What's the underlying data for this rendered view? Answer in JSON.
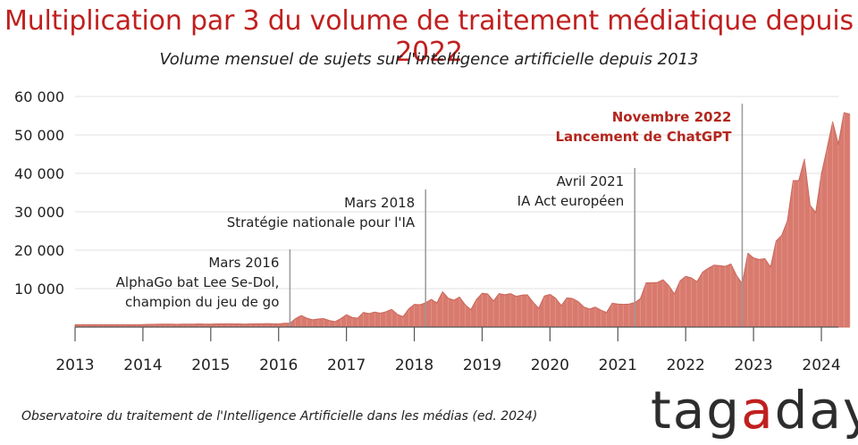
{
  "title": "Multiplication par 3 du volume de traitement médiatique depuis 2022",
  "subtitle": "Volume mensuel de sujets sur l'intelligence artificielle depuis 2013",
  "source": "Observatoire du traitement de l'Intelligence Artificielle dans les médias (ed. 2024)",
  "logo": {
    "prefix": "tag",
    "accent": "a",
    "suffix": "day"
  },
  "colors": {
    "title": "#c0201f",
    "area_fill": "#d97a6e",
    "area_stroke": "#c9675b",
    "highlight": "#b3261e",
    "text": "#222222",
    "grid": "#e2e2e2"
  },
  "chart_data": {
    "type": "area",
    "ylim": [
      0,
      60000
    ],
    "xlim": [
      "2013-01",
      "2024-04"
    ],
    "grid": "horizontal",
    "y_ticks": [
      {
        "value": 10000,
        "label": "10 000"
      },
      {
        "value": 20000,
        "label": "20 000"
      },
      {
        "value": 30000,
        "label": "30 000"
      },
      {
        "value": 40000,
        "label": "40 000"
      },
      {
        "value": 50000,
        "label": "50 000"
      },
      {
        "value": 60000,
        "label": "60 000"
      }
    ],
    "x_ticks": [
      {
        "value": "2013-01",
        "label": "2013"
      },
      {
        "value": "2014-01",
        "label": "2014"
      },
      {
        "value": "2015-01",
        "label": "2015"
      },
      {
        "value": "2016-01",
        "label": "2016"
      },
      {
        "value": "2017-01",
        "label": "2017"
      },
      {
        "value": "2018-01",
        "label": "2018"
      },
      {
        "value": "2019-01",
        "label": "2019"
      },
      {
        "value": "2020-01",
        "label": "2020"
      },
      {
        "value": "2021-01",
        "label": "2021"
      },
      {
        "value": "2022-01",
        "label": "2022"
      },
      {
        "value": "2023-01",
        "label": "2023"
      },
      {
        "value": "2024-01",
        "label": "2024"
      }
    ],
    "series": [
      {
        "start": "2013-01",
        "values": [
          600,
          600,
          600,
          600,
          600,
          600,
          600,
          600,
          600,
          600,
          600,
          600,
          650,
          700,
          700,
          750,
          750,
          750,
          700,
          750,
          750,
          750,
          800,
          750,
          750,
          800,
          800,
          850,
          800,
          800,
          750,
          800,
          850,
          850,
          900,
          850,
          800,
          1000,
          1000,
          2200,
          3000,
          2300,
          1900,
          2100,
          2200,
          1700,
          1400,
          2200,
          3200,
          2500,
          2300,
          3800,
          3500,
          3900,
          3600,
          4000,
          4600,
          3300,
          2700,
          4700,
          5900,
          5800,
          6300,
          7200,
          6300,
          9200,
          7500,
          7000,
          7800,
          5800,
          4500,
          7200,
          8800,
          8600,
          6800,
          8700,
          8400,
          8700,
          8000,
          8300,
          8400,
          6500,
          4900,
          8100,
          8500,
          7500,
          5600,
          7600,
          7400,
          6600,
          5200,
          4700,
          5200,
          4400,
          3800,
          6200,
          6000,
          5900,
          6000,
          6400,
          7400,
          11500,
          11500,
          11600,
          12300,
          10800,
          8600,
          12000,
          13200,
          12800,
          11800,
          14300,
          15300,
          16100,
          16000,
          15800,
          16400,
          13400,
          11300,
          19200,
          18000,
          17600,
          17800,
          15600,
          22400,
          23900,
          27700,
          38100,
          38100,
          43700,
          31700,
          29800,
          39800,
          46500,
          53400,
          47600,
          55800,
          55400
        ]
      }
    ],
    "annotations": [
      {
        "date": "2016-03",
        "lines": [
          "Mars 2016",
          "AlphaGo bat Lee Se-Dol,",
          "champion du jeu de go"
        ],
        "highlight": false
      },
      {
        "date": "2018-03",
        "lines": [
          "Mars 2018",
          "Stratégie nationale pour l'IA"
        ],
        "highlight": false
      },
      {
        "date": "2021-04",
        "lines": [
          "Avril 2021",
          "IA Act européen"
        ],
        "highlight": false
      },
      {
        "date": "2022-11",
        "lines": [
          "Novembre 2022",
          "Lancement de ChatGPT"
        ],
        "highlight": true
      }
    ]
  }
}
